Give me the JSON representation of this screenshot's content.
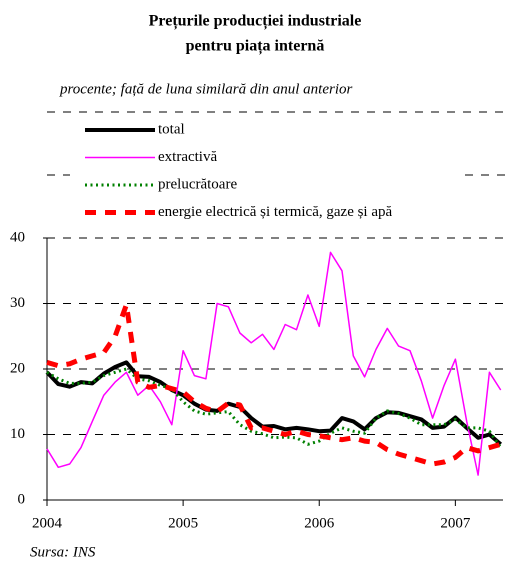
{
  "chart_data": {
    "type": "line",
    "title": [
      "Prețurile producției industriale",
      "pentru piața internă"
    ],
    "subtitle": "procente; față de luna similară din anul anterior",
    "source": "Sursa: INS",
    "x": [
      2004,
      2004.083,
      2004.167,
      2004.25,
      2004.333,
      2004.417,
      2004.5,
      2004.583,
      2004.667,
      2004.75,
      2004.833,
      2004.917,
      2005,
      2005.083,
      2005.167,
      2005.25,
      2005.333,
      2005.417,
      2005.5,
      2005.583,
      2005.667,
      2005.75,
      2005.833,
      2005.917,
      2006,
      2006.083,
      2006.167,
      2006.25,
      2006.333,
      2006.417,
      2006.5,
      2006.583,
      2006.667,
      2006.75,
      2006.833,
      2006.917,
      2007,
      2007.083,
      2007.167,
      2007.25,
      2007.333
    ],
    "xlim": [
      2004,
      2007.35
    ],
    "xticks": [
      2004,
      2005,
      2006,
      2007
    ],
    "ylim": [
      0,
      40
    ],
    "yticks": [
      0,
      10,
      20,
      30,
      40
    ],
    "grid": true,
    "legend": "top-left",
    "series": [
      {
        "name": "total",
        "color": "#000000",
        "style": "thick",
        "values": [
          19.5,
          17.7,
          17.3,
          18,
          17.8,
          19.3,
          20.3,
          21,
          18.9,
          18.8,
          18,
          16.8,
          16,
          14.7,
          13.8,
          13.6,
          14.7,
          14.2,
          12.5,
          11.2,
          11.3,
          10.8,
          11,
          10.8,
          10.5,
          10.6,
          12.5,
          12,
          10.8,
          12.5,
          13.4,
          13.3,
          12.8,
          12.3,
          11,
          11.2,
          12.6,
          11,
          9.5,
          10,
          8.5
        ]
      },
      {
        "name": "extractivă",
        "color": "#ff00ff",
        "style": "solid",
        "values": [
          7.8,
          5,
          5.5,
          8,
          12,
          16,
          18,
          19.5,
          16,
          17.5,
          15,
          11.5,
          22.8,
          19,
          18.5,
          30,
          29.5,
          25.5,
          24,
          25.3,
          23,
          26.8,
          26,
          31.3,
          26.5,
          37.8,
          35,
          22,
          18.8,
          23,
          26.2,
          23.5,
          22.8,
          18.2,
          12.5,
          17.5,
          21.5,
          12,
          3.8,
          19.5,
          16.8
        ]
      },
      {
        "name": "prelucrătoare",
        "color": "#008000",
        "style": "dotted",
        "values": [
          19.5,
          18.5,
          17.8,
          17.8,
          18,
          19,
          19.5,
          20,
          18.5,
          18.2,
          17.5,
          17,
          15,
          13.6,
          13.1,
          13.3,
          13.5,
          11.5,
          10.5,
          10.1,
          9.5,
          9.6,
          9.5,
          8.5,
          9,
          10.2,
          11,
          10.5,
          10.2,
          12.5,
          13.6,
          13.2,
          12.5,
          11.5,
          11.5,
          11.5,
          12.3,
          11,
          11,
          10.5,
          8
        ]
      },
      {
        "name": "energie electrică și termică, gaze și apă",
        "color": "#ff0000",
        "style": "dashed",
        "values": [
          21,
          20.5,
          20.8,
          21.5,
          22,
          22.5,
          25,
          29.8,
          18,
          17.2,
          17.5,
          17,
          16.5,
          15,
          14,
          13.5,
          14.8,
          14.5,
          11,
          11,
          10.5,
          10,
          10.5,
          10,
          9.8,
          9.5,
          9.2,
          9.5,
          9,
          8.8,
          7.7,
          7,
          6.5,
          6,
          5.5,
          5.8,
          6.5,
          8,
          7.5,
          8,
          8.5
        ]
      }
    ]
  }
}
